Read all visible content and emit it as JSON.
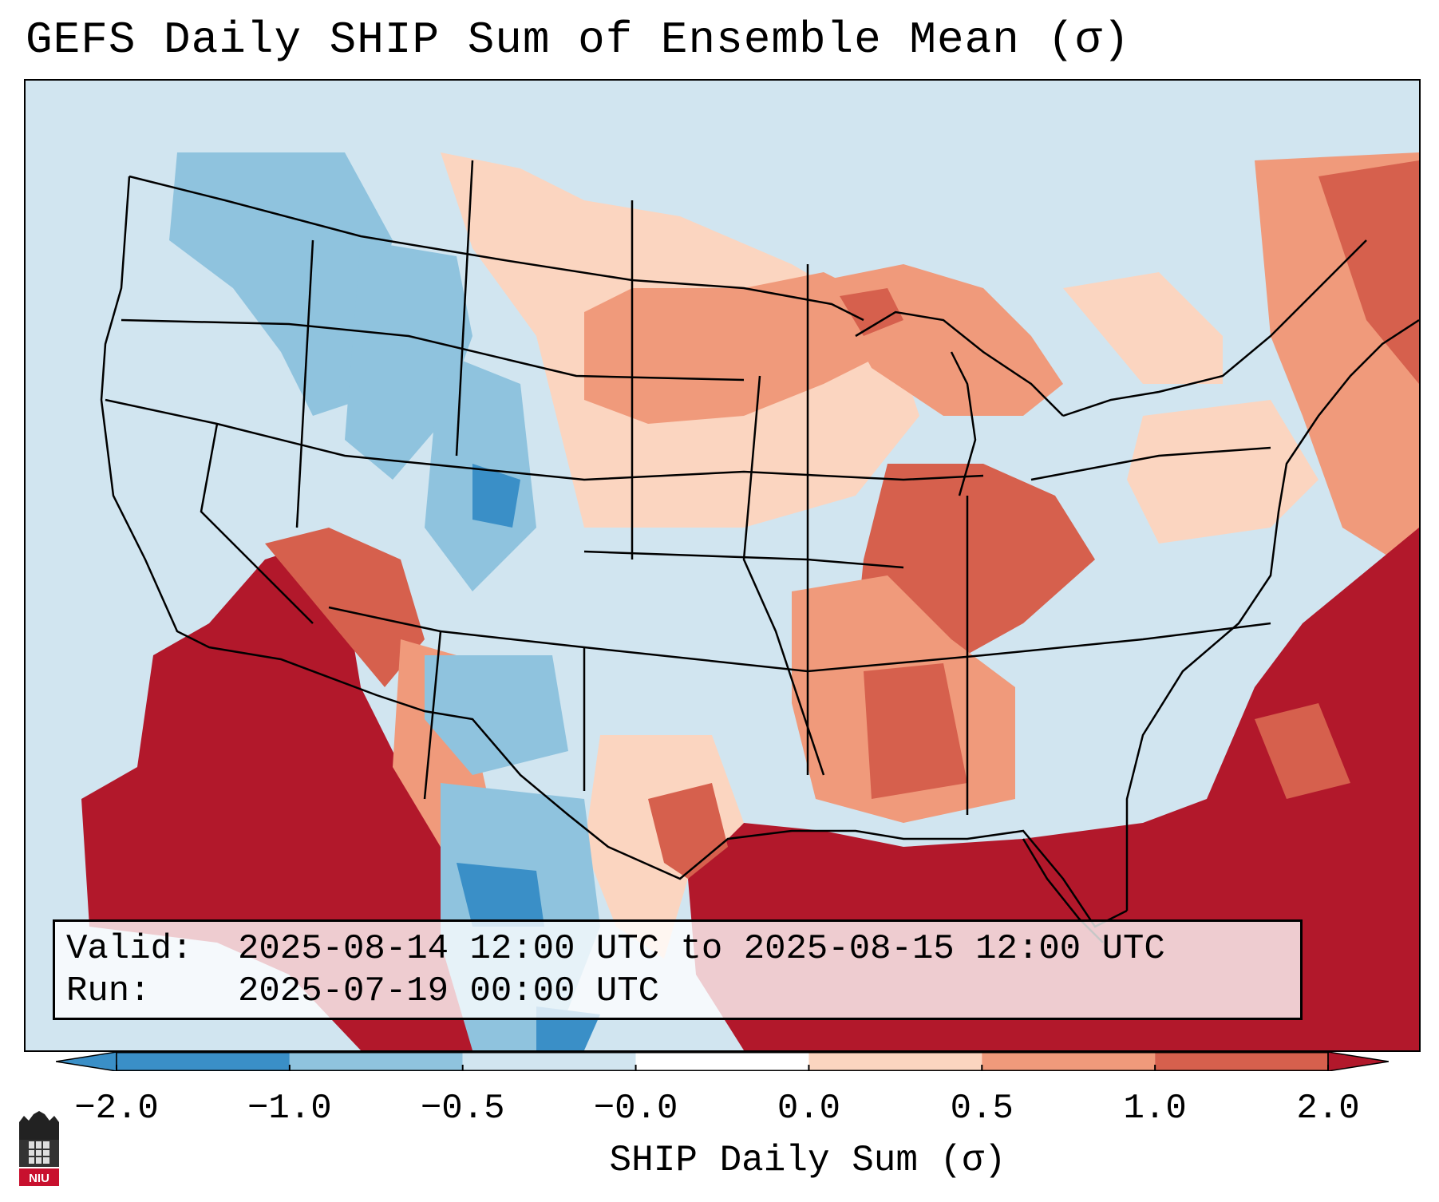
{
  "title": "GEFS Daily SHIP Sum of Ensemble Mean (σ)",
  "info": {
    "valid_label": "Valid:",
    "valid_value": "2025-08-14 12:00 UTC to 2025-08-15 12:00 UTC",
    "run_label": "Run:",
    "run_value": "2025-07-19 00:00 UTC"
  },
  "colorbar": {
    "label": "SHIP Daily Sum (σ)",
    "ticks": [
      "−2.0",
      "−1.0",
      "−0.5",
      "−0.0",
      "0.0",
      "0.5",
      "1.0",
      "2.0"
    ],
    "colors": [
      "#3a8fc7",
      "#8fc3de",
      "#d1e5f0",
      "#ffffff",
      "#fbd5c0",
      "#f09a7b",
      "#d6604d",
      "#b2182b"
    ],
    "extend": "both"
  },
  "legend_colors": {
    "strong_negative": "#3a8fc7",
    "negative": "#8fc3de",
    "weak_negative": "#d1e5f0",
    "weak_positive": "#fbd5c0",
    "positive": "#f09a7b",
    "strong_positive": "#d6604d",
    "very_strong_positive": "#b2182b"
  },
  "logo": {
    "text": "NIU"
  }
}
